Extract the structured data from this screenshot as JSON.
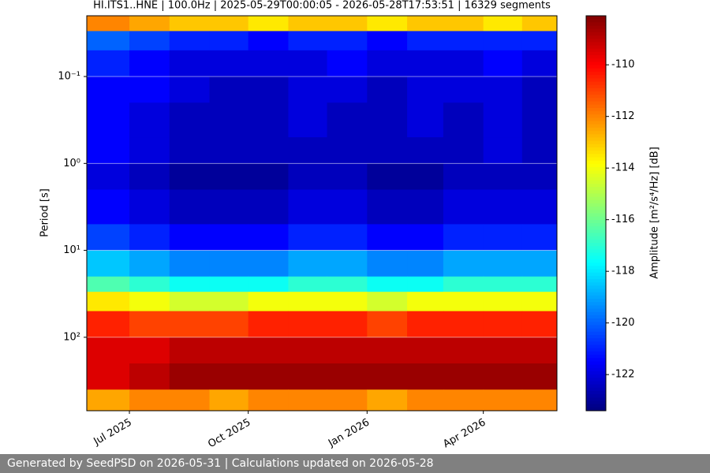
{
  "chart_data": {
    "type": "heatmap",
    "title": "HI.ITS1..HNE | 100.0Hz | 2025-05-29T00:00:05 - 2026-05-28T17:53:51 | 16329 segments",
    "y_label": "Period [s]",
    "colorbar_label": "Amplitude [m²/s⁴/Hz] [dB]",
    "colormap": "jet",
    "y_log": true,
    "grid": true,
    "xlim": [
      "2025-05-29",
      "2026-05-28"
    ],
    "xticks": [
      {
        "value": "2025-07-01",
        "label": "Jul 2025"
      },
      {
        "value": "2025-10-01",
        "label": "Oct 2025"
      },
      {
        "value": "2026-01-01",
        "label": "Jan 2026"
      },
      {
        "value": "2026-04-01",
        "label": "Apr 2026"
      }
    ],
    "ylim": [
      700,
      0.02
    ],
    "yticks": [
      {
        "value": 0.1,
        "label": "10⁻¹"
      },
      {
        "value": 1,
        "label": "10⁰"
      },
      {
        "value": 10,
        "label": "10¹"
      },
      {
        "value": 100,
        "label": "10²"
      }
    ],
    "x": [
      "2025-05-29",
      "2025-07-01",
      "2025-08-01",
      "2025-09-01",
      "2025-10-01",
      "2025-11-01",
      "2025-12-01",
      "2026-01-01",
      "2026-02-01",
      "2026-03-01",
      "2026-04-01",
      "2026-05-01"
    ],
    "y": [
      0.02,
      0.03,
      0.05,
      0.1,
      0.2,
      0.5,
      1,
      2,
      5,
      10,
      20,
      30,
      50,
      100,
      200,
      400,
      700
    ],
    "z": [
      [
        -112,
        -112.5,
        -113,
        -113,
        -113.5,
        -113,
        -113,
        -113.5,
        -113,
        -113,
        -113.5,
        -113
      ],
      [
        -120,
        -120.5,
        -121,
        -121,
        -121.5,
        -121,
        -121,
        -121.5,
        -121,
        -121,
        -121,
        -121
      ],
      [
        -121,
        -121.5,
        -122,
        -122,
        -122,
        -122,
        -121.5,
        -122,
        -122,
        -122,
        -121.5,
        -122
      ],
      [
        -121.5,
        -121.5,
        -122,
        -122.5,
        -122.5,
        -122,
        -122,
        -122.5,
        -122,
        -122,
        -122,
        -122.5
      ],
      [
        -121.5,
        -122,
        -122.5,
        -122.5,
        -122.5,
        -122,
        -122.5,
        -122.5,
        -122,
        -122.5,
        -122,
        -122.5
      ],
      [
        -121.5,
        -122,
        -122.5,
        -122.5,
        -122.5,
        -122.5,
        -122.5,
        -122.5,
        -122.5,
        -122.5,
        -122,
        -122.5
      ],
      [
        -122,
        -122.5,
        -123,
        -123,
        -123,
        -122.5,
        -122.5,
        -123,
        -123,
        -122.5,
        -122.5,
        -122.5
      ],
      [
        -121.5,
        -122,
        -122.5,
        -122.5,
        -122.5,
        -122,
        -122,
        -122.5,
        -122.5,
        -122,
        -122,
        -122
      ],
      [
        -120.5,
        -121,
        -121.5,
        -121.5,
        -121.5,
        -121,
        -121,
        -121.5,
        -121.5,
        -121,
        -121,
        -121
      ],
      [
        -118.5,
        -119,
        -119.5,
        -119.5,
        -119.5,
        -119,
        -119,
        -119.5,
        -119.5,
        -119,
        -119,
        -119
      ],
      [
        -116.5,
        -117,
        -117.5,
        -117.5,
        -117.5,
        -117,
        -117,
        -117.5,
        -117.5,
        -117,
        -117,
        -117
      ],
      [
        -113.5,
        -114,
        -114.5,
        -114.5,
        -114,
        -114,
        -114,
        -114.5,
        -114,
        -114,
        -114,
        -114
      ],
      [
        -110.5,
        -111,
        -111,
        -111,
        -110.5,
        -110.5,
        -110.5,
        -111,
        -110.5,
        -110.5,
        -110.5,
        -110.5
      ],
      [
        -109.5,
        -109.5,
        -109,
        -109,
        -109,
        -109,
        -109,
        -109,
        -109,
        -109,
        -109,
        -109
      ],
      [
        -109.5,
        -109,
        -108.5,
        -108.5,
        -108.5,
        -108.5,
        -108.5,
        -108.5,
        -108.5,
        -108.5,
        -108.5,
        -108.5
      ],
      [
        -112.5,
        -112,
        -112,
        -112.5,
        -112,
        -112,
        -112,
        -112.5,
        -112,
        -112,
        -112,
        -112
      ]
    ],
    "clim": [
      -123.4,
      -108.1
    ],
    "colorbar_ticks": [
      -110,
      -112,
      -114,
      -116,
      -118,
      -120,
      -122
    ]
  },
  "footer": "Generated by SeedPSD on 2026-05-31 | Calculations updated on 2026-05-28"
}
